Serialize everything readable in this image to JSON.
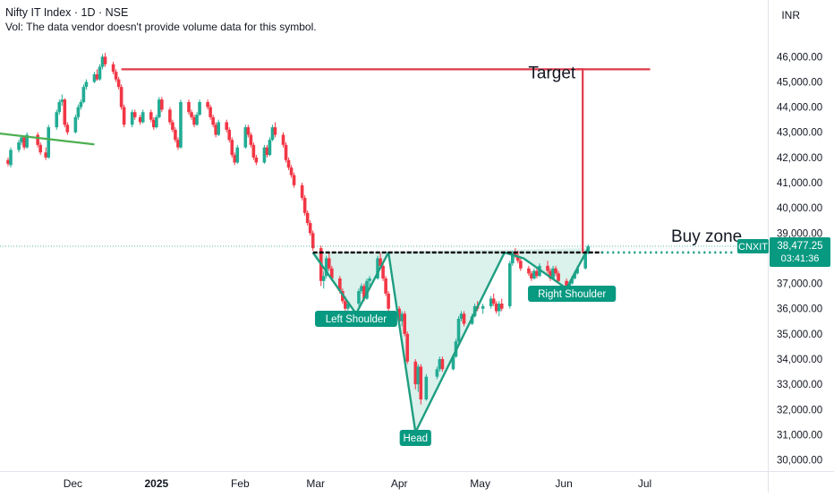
{
  "header": {
    "title": "Nifty IT Index · 1D · NSE",
    "volume_note": "Vol: The data vendor doesn't provide volume data for this symbol.",
    "currency": "INR"
  },
  "colors": {
    "up": "#22ab94",
    "down": "#f23645",
    "pattern_fill": "#d6f0ea",
    "pattern_line": "#1e9e80",
    "target_line": "#e03a4a",
    "trend_line": "#4caf50",
    "price_tag": "#089981",
    "neckline": "#000000"
  },
  "chart_data": {
    "type": "candlestick",
    "symbol": "CNXIT",
    "last_price": "38,477.25",
    "countdown": "03:41:36",
    "ylim": [
      29700,
      46900
    ],
    "y_ticks": [
      30000,
      31000,
      32000,
      33000,
      34000,
      35000,
      36000,
      37000,
      38000,
      39000,
      40000,
      41000,
      42000,
      43000,
      44000,
      45000,
      46000
    ],
    "y_tick_labels": [
      "30,000.00",
      "31,000.00",
      "32,000.00",
      "33,000.00",
      "34,000.00",
      "35,000.00",
      "36,000.00",
      "37,000.00",
      "38,000.00",
      "39,000.00",
      "40,000.00",
      "41,000.00",
      "42,000.00",
      "43,000.00",
      "44,000.00",
      "45,000.00",
      "46,000.00"
    ],
    "x_axis_labels": [
      "Dec",
      "2025",
      "Feb",
      "Mar",
      "Apr",
      "May",
      "Jun",
      "Jul"
    ],
    "x_axis_label_dates": [
      "2024-12-01",
      "2025-01-01",
      "2025-02-01",
      "2025-03-01",
      "2025-04-01",
      "2025-05-01",
      "2025-06-01",
      "2025-07-01"
    ],
    "annotations": {
      "target": {
        "label": "Target",
        "price": 45500,
        "from_date": "2024-12-19",
        "to_date": "2025-07-03"
      },
      "buy_zone": {
        "label": "Buy zone",
        "price": 38230
      },
      "neckline": {
        "price": 38230,
        "from_date": "2025-02-28",
        "to_date": "2025-06-15"
      },
      "trend_line": {
        "from": [
          "2024-10-27",
          43050
        ],
        "to": [
          "2024-12-09",
          42520
        ]
      },
      "left_shoulder": {
        "label": "Left Shoulder",
        "date": "2025-03-16"
      },
      "head": {
        "label": "Head",
        "date": "2025-04-07"
      },
      "right_shoulder": {
        "label": "Right Shoulder",
        "date": "2025-06-04"
      },
      "pattern_path": [
        [
          "2025-02-28",
          38230
        ],
        [
          "2025-03-16",
          35800
        ],
        [
          "2025-03-28",
          38230
        ],
        [
          "2025-04-07",
          31100
        ],
        [
          "2025-05-10",
          38230
        ],
        [
          "2025-05-17",
          38000
        ],
        [
          "2025-06-02",
          36800
        ],
        [
          "2025-06-10",
          38400
        ]
      ],
      "target_measure": {
        "date": "2025-06-08",
        "from_price": 38230,
        "to_price": 45500
      }
    },
    "candles": [
      [
        "2024-11-07",
        41900,
        42000,
        41650,
        41750
      ],
      [
        "2024-11-08",
        41700,
        42400,
        41600,
        42300
      ],
      [
        "2024-11-11",
        42300,
        42700,
        42200,
        42600
      ],
      [
        "2024-11-12",
        42600,
        42900,
        42500,
        42800
      ],
      [
        "2024-11-13",
        42800,
        42850,
        42300,
        42400
      ],
      [
        "2024-11-14",
        42400,
        43000,
        42350,
        42900
      ],
      [
        "2024-11-18",
        42900,
        43000,
        42400,
        42500
      ],
      [
        "2024-11-19",
        42500,
        42600,
        42100,
        42200
      ],
      [
        "2024-11-21",
        42200,
        42400,
        41900,
        42000
      ],
      [
        "2024-11-22",
        42000,
        43300,
        41950,
        43200
      ],
      [
        "2024-11-25",
        43200,
        43900,
        43100,
        43800
      ],
      [
        "2024-11-26",
        43800,
        44300,
        43700,
        44200
      ],
      [
        "2024-11-27",
        44200,
        44500,
        44050,
        44300
      ],
      [
        "2024-11-28",
        44300,
        44350,
        43200,
        43300
      ],
      [
        "2024-11-29",
        43300,
        43400,
        42900,
        43000
      ],
      [
        "2024-12-02",
        43000,
        43700,
        42950,
        43600
      ],
      [
        "2024-12-03",
        43600,
        44100,
        43500,
        44000
      ],
      [
        "2024-12-04",
        44000,
        44300,
        43900,
        44200
      ],
      [
        "2024-12-05",
        44200,
        44900,
        44150,
        44800
      ],
      [
        "2024-12-06",
        44800,
        45100,
        44700,
        45000
      ],
      [
        "2024-12-09",
        45000,
        45400,
        44950,
        45300
      ],
      [
        "2024-12-10",
        45300,
        45500,
        45050,
        45100
      ],
      [
        "2024-12-11",
        45100,
        45700,
        45050,
        45600
      ],
      [
        "2024-12-12",
        45600,
        46100,
        45500,
        46000
      ],
      [
        "2024-12-13",
        46000,
        46150,
        45600,
        45700
      ],
      [
        "2024-12-16",
        45700,
        45800,
        45300,
        45400
      ],
      [
        "2024-12-17",
        45400,
        45500,
        45000,
        45100
      ],
      [
        "2024-12-18",
        45100,
        45200,
        44700,
        44800
      ],
      [
        "2024-12-19",
        44800,
        44900,
        43900,
        44000
      ],
      [
        "2024-12-20",
        44000,
        44100,
        43200,
        43300
      ],
      [
        "2024-12-23",
        43300,
        43900,
        43200,
        43800
      ],
      [
        "2024-12-24",
        43800,
        43900,
        43500,
        43600
      ],
      [
        "2024-12-26",
        43600,
        43700,
        43300,
        43400
      ],
      [
        "2024-12-27",
        43400,
        43900,
        43350,
        43800
      ],
      [
        "2024-12-30",
        43800,
        43900,
        43400,
        43500
      ],
      [
        "2024-12-31",
        43500,
        43600,
        43100,
        43200
      ],
      [
        "2025-01-01",
        43200,
        43700,
        43150,
        43600
      ],
      [
        "2025-01-02",
        43600,
        44400,
        43550,
        44300
      ],
      [
        "2025-01-03",
        44300,
        44400,
        43800,
        43900
      ],
      [
        "2025-01-06",
        43900,
        44000,
        43300,
        43400
      ],
      [
        "2025-01-07",
        43400,
        43500,
        43000,
        43100
      ],
      [
        "2025-01-08",
        43100,
        43200,
        42600,
        42700
      ],
      [
        "2025-01-09",
        42700,
        42800,
        42300,
        42400
      ],
      [
        "2025-01-10",
        42400,
        44300,
        42350,
        44200
      ],
      [
        "2025-01-13",
        44200,
        44300,
        43700,
        43800
      ],
      [
        "2025-01-14",
        43800,
        43900,
        43500,
        43600
      ],
      [
        "2025-01-15",
        43600,
        43700,
        43200,
        43300
      ],
      [
        "2025-01-16",
        43300,
        43800,
        43250,
        43700
      ],
      [
        "2025-01-17",
        43700,
        44300,
        43650,
        44200
      ],
      [
        "2025-01-20",
        44200,
        44300,
        43900,
        44000
      ],
      [
        "2025-01-21",
        44000,
        44100,
        43500,
        43600
      ],
      [
        "2025-01-22",
        43600,
        43700,
        43200,
        43300
      ],
      [
        "2025-01-23",
        43300,
        43400,
        42800,
        42900
      ],
      [
        "2025-01-24",
        42900,
        43500,
        42850,
        43400
      ],
      [
        "2025-01-27",
        43400,
        43500,
        43000,
        43100
      ],
      [
        "2025-01-28",
        43100,
        43200,
        42600,
        42700
      ],
      [
        "2025-01-29",
        42700,
        42800,
        42000,
        42100
      ],
      [
        "2025-01-30",
        42100,
        42200,
        41700,
        41800
      ],
      [
        "2025-01-31",
        41800,
        42500,
        41750,
        42400
      ],
      [
        "2025-02-03",
        42400,
        43300,
        42350,
        43200
      ],
      [
        "2025-02-04",
        43200,
        43300,
        42800,
        42900
      ],
      [
        "2025-02-05",
        42900,
        43000,
        42400,
        42500
      ],
      [
        "2025-02-06",
        42500,
        42600,
        41900,
        42000
      ],
      [
        "2025-02-07",
        42000,
        42100,
        41700,
        41800
      ],
      [
        "2025-02-10",
        41800,
        42500,
        41750,
        42400
      ],
      [
        "2025-02-11",
        42400,
        42500,
        42000,
        42100
      ],
      [
        "2025-02-12",
        42100,
        42800,
        42050,
        42700
      ],
      [
        "2025-02-13",
        42700,
        43300,
        42650,
        43200
      ],
      [
        "2025-02-14",
        43200,
        43400,
        42800,
        42900
      ],
      [
        "2025-02-17",
        42900,
        43000,
        42400,
        42500
      ],
      [
        "2025-02-18",
        42500,
        42600,
        41800,
        41900
      ],
      [
        "2025-02-19",
        41900,
        42000,
        41500,
        41600
      ],
      [
        "2025-02-20",
        41600,
        41700,
        41200,
        41300
      ],
      [
        "2025-02-21",
        41300,
        41400,
        40800,
        40900
      ],
      [
        "2025-02-24",
        40900,
        41000,
        40300,
        40400
      ],
      [
        "2025-02-25",
        40400,
        40500,
        39700,
        39800
      ],
      [
        "2025-02-26",
        39800,
        39900,
        39300,
        39400
      ],
      [
        "2025-02-27",
        39400,
        39500,
        38900,
        39000
      ],
      [
        "2025-02-28",
        39000,
        39100,
        38300,
        38400
      ],
      [
        "2025-03-03",
        38400,
        38500,
        36900,
        37100
      ],
      [
        "2025-03-04",
        37100,
        37500,
        36800,
        37300
      ],
      [
        "2025-03-05",
        37300,
        38100,
        37200,
        38000
      ],
      [
        "2025-03-06",
        38000,
        38200,
        37500,
        37600
      ],
      [
        "2025-03-07",
        37600,
        37700,
        37100,
        37200
      ],
      [
        "2025-03-10",
        37200,
        37300,
        36600,
        36700
      ],
      [
        "2025-03-11",
        36700,
        36800,
        36200,
        36300
      ],
      [
        "2025-03-12",
        36300,
        36500,
        35900,
        36000
      ],
      [
        "2025-03-13",
        36000,
        36300,
        35800,
        36200
      ],
      [
        "2025-03-17",
        36200,
        36800,
        36100,
        36700
      ],
      [
        "2025-03-18",
        36700,
        37000,
        36600,
        36900
      ],
      [
        "2025-03-19",
        36900,
        37000,
        36300,
        36400
      ],
      [
        "2025-03-20",
        36400,
        37200,
        36350,
        37100
      ],
      [
        "2025-03-21",
        37100,
        37300,
        36900,
        37200
      ],
      [
        "2025-03-24",
        37200,
        38100,
        37150,
        38000
      ],
      [
        "2025-03-25",
        38000,
        38200,
        37600,
        37700
      ],
      [
        "2025-03-26",
        37700,
        37800,
        37100,
        37200
      ],
      [
        "2025-03-27",
        37200,
        37300,
        36500,
        36600
      ],
      [
        "2025-03-28",
        36600,
        36700,
        35900,
        36000
      ],
      [
        "2025-04-01",
        36000,
        36100,
        35400,
        35500
      ],
      [
        "2025-04-02",
        35500,
        35900,
        35300,
        35800
      ],
      [
        "2025-04-03",
        35800,
        35900,
        34900,
        35000
      ],
      [
        "2025-04-04",
        35000,
        35100,
        33800,
        33900
      ],
      [
        "2025-04-07",
        33900,
        34000,
        32800,
        33000
      ],
      [
        "2025-04-08",
        33000,
        33800,
        32700,
        33700
      ],
      [
        "2025-04-09",
        33700,
        33800,
        32200,
        32400
      ],
      [
        "2025-04-11",
        32400,
        33400,
        32350,
        33300
      ],
      [
        "2025-04-15",
        33300,
        33700,
        33200,
        33600
      ],
      [
        "2025-04-16",
        33600,
        34100,
        33500,
        34000
      ],
      [
        "2025-04-17",
        34000,
        34100,
        33500,
        33600
      ],
      [
        "2025-04-21",
        33600,
        34200,
        33550,
        34100
      ],
      [
        "2025-04-22",
        34100,
        34800,
        34050,
        34700
      ],
      [
        "2025-04-23",
        34700,
        35700,
        34650,
        35600
      ],
      [
        "2025-04-24",
        35600,
        35900,
        35500,
        35800
      ],
      [
        "2025-04-25",
        35800,
        35900,
        35300,
        35400
      ],
      [
        "2025-04-28",
        35400,
        35800,
        35350,
        35700
      ],
      [
        "2025-04-29",
        35700,
        36200,
        35650,
        36100
      ],
      [
        "2025-04-30",
        36100,
        36300,
        35900,
        36000
      ],
      [
        "2025-05-02",
        36000,
        36200,
        35800,
        36100
      ],
      [
        "2025-05-05",
        36100,
        36500,
        36000,
        36400
      ],
      [
        "2025-05-06",
        36400,
        36600,
        36100,
        36200
      ],
      [
        "2025-05-07",
        36200,
        36300,
        35800,
        35900
      ],
      [
        "2025-05-08",
        35900,
        36300,
        35700,
        36200
      ],
      [
        "2025-05-09",
        36200,
        36400,
        35900,
        36000
      ],
      [
        "2025-05-12",
        36100,
        37900,
        36000,
        37800
      ],
      [
        "2025-05-13",
        37800,
        38300,
        37700,
        38200
      ],
      [
        "2025-05-14",
        38200,
        38400,
        38000,
        38100
      ],
      [
        "2025-05-15",
        38100,
        38300,
        37800,
        37900
      ],
      [
        "2025-05-16",
        37900,
        38000,
        37500,
        37600
      ],
      [
        "2025-05-19",
        37600,
        37700,
        37300,
        37400
      ],
      [
        "2025-05-20",
        37400,
        37500,
        37100,
        37200
      ],
      [
        "2025-05-21",
        37200,
        37600,
        37150,
        37500
      ],
      [
        "2025-05-22",
        37500,
        37600,
        37200,
        37300
      ],
      [
        "2025-05-23",
        37300,
        37800,
        37250,
        37700
      ],
      [
        "2025-05-26",
        37700,
        37900,
        37400,
        37500
      ],
      [
        "2025-05-27",
        37500,
        37600,
        37100,
        37200
      ],
      [
        "2025-05-28",
        37200,
        37700,
        37150,
        37600
      ],
      [
        "2025-05-29",
        37600,
        37700,
        37300,
        37400
      ],
      [
        "2025-05-30",
        37400,
        37500,
        37000,
        37100
      ],
      [
        "2025-06-02",
        37100,
        37200,
        36800,
        36900
      ],
      [
        "2025-06-03",
        36900,
        37100,
        36700,
        37000
      ],
      [
        "2025-06-04",
        37000,
        37300,
        36950,
        37200
      ],
      [
        "2025-06-05",
        37200,
        37500,
        37150,
        37400
      ],
      [
        "2025-06-06",
        37400,
        37700,
        37350,
        37600
      ],
      [
        "2025-06-09",
        37600,
        38300,
        37550,
        38200
      ],
      [
        "2025-06-10",
        38200,
        38550,
        38150,
        38477
      ]
    ]
  }
}
